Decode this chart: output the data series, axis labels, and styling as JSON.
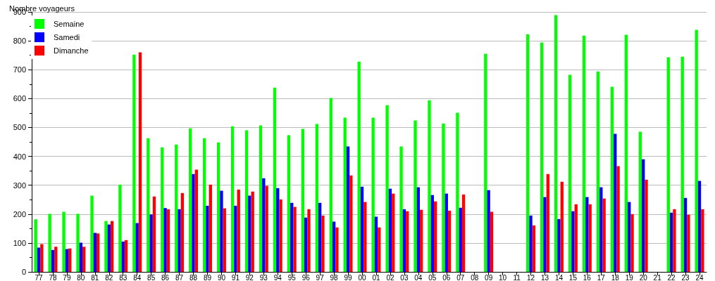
{
  "chart_data": {
    "type": "bar",
    "ylabel": "Nombre voyageurs",
    "categories": [
      "77",
      "78",
      "79",
      "80",
      "81",
      "82",
      "83",
      "84",
      "85",
      "86",
      "87",
      "88",
      "89",
      "90",
      "91",
      "92",
      "93",
      "94",
      "95",
      "96",
      "97",
      "98",
      "99",
      "00",
      "01",
      "02",
      "03",
      "04",
      "05",
      "06",
      "07",
      "08",
      "09",
      "10",
      "11",
      "12",
      "13",
      "14",
      "15",
      "16",
      "17",
      "18",
      "19",
      "20",
      "21",
      "22",
      "23",
      "24"
    ],
    "series": [
      {
        "name": "Semaine",
        "color": "#00ff00",
        "values": [
          182,
          201,
          208,
          201,
          264,
          176,
          302,
          752,
          463,
          431,
          441,
          497,
          463,
          448,
          504,
          490,
          507,
          638,
          473,
          495,
          512,
          602,
          534,
          728,
          534,
          577,
          434,
          524,
          594,
          514,
          551,
          null,
          755,
          null,
          null,
          823,
          794,
          889,
          682,
          818,
          694,
          641,
          821,
          485,
          null,
          743,
          745,
          838
        ]
      },
      {
        "name": "Samedi",
        "color": "#0000ff",
        "values": [
          84,
          76,
          79,
          101,
          135,
          164,
          105,
          169,
          199,
          221,
          217,
          339,
          229,
          281,
          229,
          264,
          324,
          290,
          239,
          188,
          239,
          174,
          434,
          295,
          191,
          288,
          217,
          293,
          266,
          271,
          222,
          null,
          283,
          null,
          null,
          195,
          259,
          183,
          210,
          259,
          293,
          478,
          242,
          390,
          null,
          205,
          256,
          315
        ]
      },
      {
        "name": "Dimanche",
        "color": "#ff0000",
        "values": [
          96,
          87,
          81,
          87,
          133,
          176,
          110,
          760,
          261,
          217,
          273,
          354,
          302,
          220,
          285,
          278,
          298,
          251,
          225,
          217,
          195,
          154,
          334,
          242,
          154,
          271,
          210,
          215,
          244,
          212,
          268,
          null,
          208,
          null,
          null,
          161,
          339,
          312,
          234,
          234,
          254,
          366,
          200,
          319,
          null,
          217,
          198,
          217
        ]
      }
    ],
    "ylim": [
      0,
      900
    ],
    "yticks": [
      0,
      100,
      200,
      300,
      400,
      500,
      600,
      700,
      800,
      900
    ],
    "grid": "y",
    "legend": "top left"
  }
}
